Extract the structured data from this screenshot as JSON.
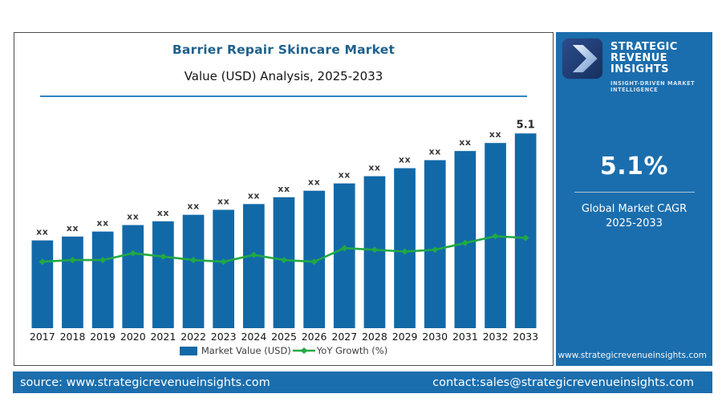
{
  "colors": {
    "accent_blue": "#1269a8",
    "growth_green": "#22a845",
    "panel_blue": "#1b6ead",
    "title_blue": "#1f618d",
    "divider_blue": "#2e86c1",
    "logo_navy_dark": "#16305e",
    "logo_navy_light": "#2c4c8c"
  },
  "chart": {
    "title": "Barrier Repair Skincare Market",
    "subtitle": "Value (USD) Analysis, 2025-2033",
    "legend": [
      {
        "label": "Market Value (USD)",
        "type": "bar",
        "color": "#1269a8"
      },
      {
        "label": "YoY Growth (%)",
        "type": "line",
        "color": "#22a845"
      }
    ]
  },
  "chart_data": {
    "type": "bar+line",
    "title": "Barrier Repair Skincare Market",
    "subtitle": "Value (USD) Analysis, 2025-2033",
    "categories": [
      "2017",
      "2018",
      "2019",
      "2020",
      "2021",
      "2022",
      "2023",
      "2024",
      "2025",
      "2026",
      "2027",
      "2028",
      "2029",
      "2030",
      "2031",
      "2032",
      "2033"
    ],
    "series": [
      {
        "name": "Market Value (USD)",
        "type": "bar",
        "color": "#1269a8",
        "axis": "left",
        "values": [
          2.3,
          2.4,
          2.53,
          2.7,
          2.8,
          2.97,
          3.1,
          3.25,
          3.43,
          3.6,
          3.79,
          3.98,
          4.19,
          4.4,
          4.64,
          4.85,
          5.1
        ],
        "labels": [
          "xx",
          "xx",
          "xx",
          "xx",
          "xx",
          "xx",
          "xx",
          "xx",
          "xx",
          "xx",
          "xx",
          "xx",
          "xx",
          "xx",
          "xx",
          "xx",
          "5.1"
        ]
      },
      {
        "name": "YoY Growth (%)",
        "type": "line",
        "color": "#22a845",
        "axis": "right",
        "values": [
          3.9,
          4.0,
          4.0,
          4.4,
          4.2,
          4.0,
          3.9,
          4.3,
          4.0,
          3.9,
          4.7,
          4.6,
          4.5,
          4.6,
          5.0,
          5.4,
          5.3
        ]
      }
    ],
    "ylim_left": [
      0,
      5.8
    ],
    "ylim_right": [
      0,
      13
    ],
    "grid": false,
    "axes_visible": false,
    "legend_position": "bottom-center",
    "final_bar_label": "5.1"
  },
  "sidebar": {
    "brand_line1": "STRATEGIC",
    "brand_line2": "REVENUE INSIGHTS",
    "tagline": "INSIGHT-DRIVEN MARKET INTELLIGENCE",
    "cagr_value": "5.1%",
    "cagr_label_line1": "Global Market CAGR",
    "cagr_label_line2": "2025-2033",
    "website": "www.strategicrevenueinsights.com"
  },
  "footer": {
    "source": "source: www.strategicrevenueinsights.com",
    "contact": "contact:sales@strategicrevenueinsights.com"
  }
}
